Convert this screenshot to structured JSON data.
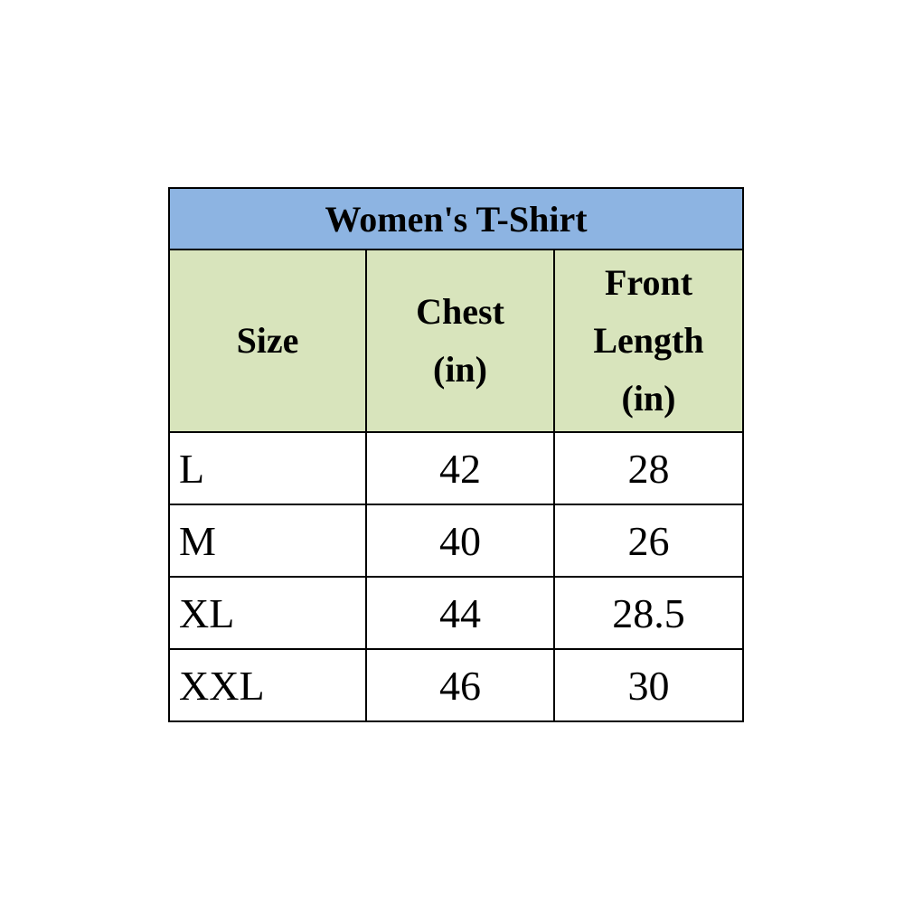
{
  "title": "Women's T-Shirt",
  "colors": {
    "title_bg": "#8DB4E2",
    "header_bg": "#D8E4BC"
  },
  "headers": {
    "size": "Size",
    "chest": [
      "Chest",
      "(in)"
    ],
    "front_length": [
      "Front",
      "Length",
      "(in)"
    ]
  },
  "rows": [
    {
      "size": "L",
      "chest": "42",
      "front_length": "28"
    },
    {
      "size": "M",
      "chest": "40",
      "front_length": "26"
    },
    {
      "size": "XL",
      "chest": "44",
      "front_length": "28.5"
    },
    {
      "size": "XXL",
      "chest": "46",
      "front_length": "30"
    }
  ]
}
